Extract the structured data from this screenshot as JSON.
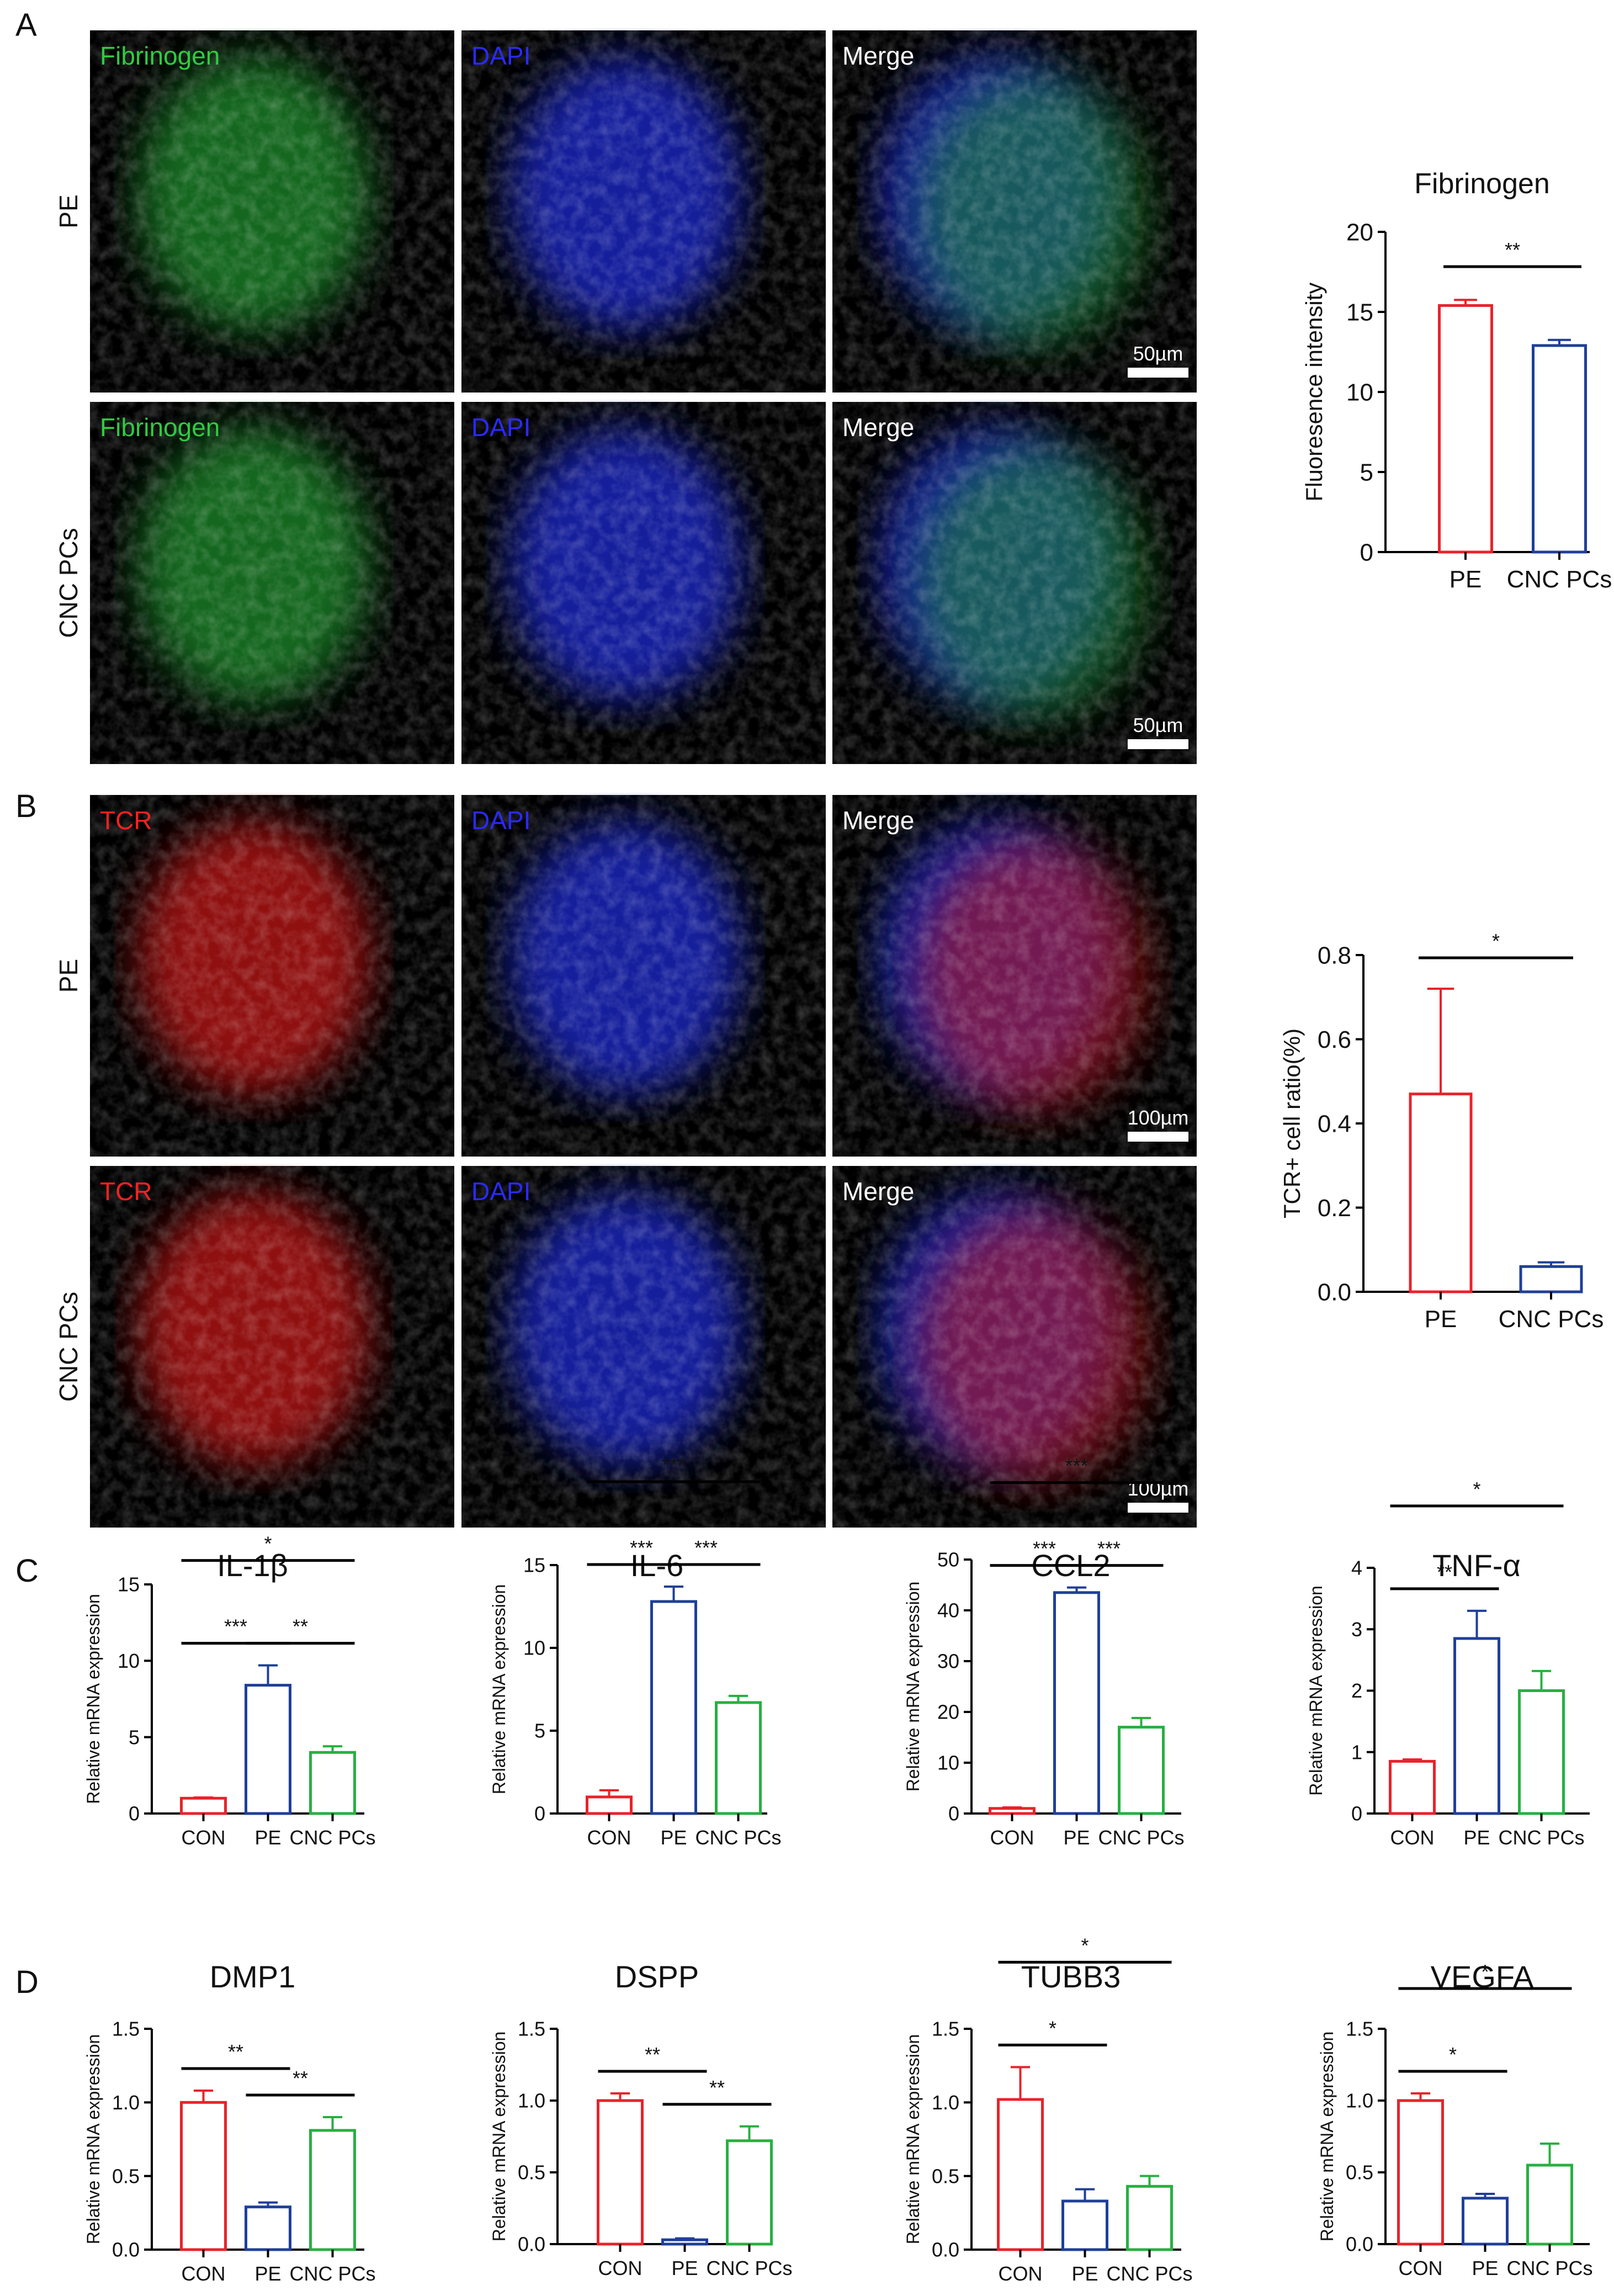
{
  "panels": {
    "A": {
      "label": "A",
      "rows": [
        {
          "name": "PE",
          "scale_bar": "50µm",
          "tiles": [
            {
              "label": "Fibrinogen",
              "color": "#2ecc40"
            },
            {
              "label": "DAPI",
              "color": "#2a2aff"
            },
            {
              "label": "Merge",
              "color": "#ffffff"
            }
          ]
        },
        {
          "name": "CNC PCs",
          "scale_bar": "50µm",
          "tiles": [
            {
              "label": "Fibrinogen",
              "color": "#2ecc40"
            },
            {
              "label": "DAPI",
              "color": "#2a2aff"
            },
            {
              "label": "Merge",
              "color": "#ffffff"
            }
          ]
        }
      ]
    },
    "B": {
      "label": "B",
      "rows": [
        {
          "name": "PE",
          "scale_bar": "100µm",
          "tiles": [
            {
              "label": "TCR",
              "color": "#ff2020"
            },
            {
              "label": "DAPI",
              "color": "#2a2aff"
            },
            {
              "label": "Merge",
              "color": "#ffffff"
            }
          ]
        },
        {
          "name": "CNC PCs",
          "scale_bar": "100µm",
          "tiles": [
            {
              "label": "TCR",
              "color": "#ff2020"
            },
            {
              "label": "DAPI",
              "color": "#2a2aff"
            },
            {
              "label": "Merge",
              "color": "#ffffff"
            }
          ]
        }
      ]
    },
    "C": {
      "label": "C"
    },
    "D": {
      "label": "D"
    }
  },
  "chart_data": [
    {
      "id": "fib",
      "type": "bar",
      "title": "Fibrinogen",
      "ylabel": "Fluoresence intensity",
      "categories": [
        "PE",
        "CNC PCs"
      ],
      "values": [
        15.4,
        12.9
      ],
      "errors": [
        0.35,
        0.35
      ],
      "colors": [
        "#e8232a",
        "#1f3f99"
      ],
      "ylim": [
        0,
        20
      ],
      "yticks": [
        "0",
        "5",
        "10",
        "15",
        "20"
      ],
      "significance": [
        {
          "from": 0,
          "to": 1,
          "label": "**"
        }
      ]
    },
    {
      "id": "tcr",
      "type": "bar",
      "title": "",
      "ylabel": "TCR+ cell ratio(%)",
      "categories": [
        "PE",
        "CNC PCs"
      ],
      "values": [
        0.47,
        0.06
      ],
      "errors": [
        0.25,
        0.01
      ],
      "colors": [
        "#e8232a",
        "#1f3f99"
      ],
      "ylim": [
        0,
        0.8
      ],
      "yticks": [
        "0.0",
        "0.2",
        "0.4",
        "0.6",
        "0.8"
      ],
      "significance": [
        {
          "from": 0,
          "to": 1,
          "label": "*"
        }
      ]
    },
    {
      "id": "il1b",
      "type": "bar",
      "title": "IL-1β",
      "ylabel": "Relative mRNA expression",
      "categories": [
        "CON",
        "PE",
        "CNC PCs"
      ],
      "values": [
        1.0,
        8.4,
        4.0
      ],
      "errors": [
        0.05,
        1.3,
        0.4
      ],
      "colors": [
        "#e8232a",
        "#1f3f99",
        "#27b040"
      ],
      "ylim": [
        0,
        15
      ],
      "yticks": [
        "0",
        "5",
        "10",
        "15"
      ],
      "significance": [
        {
          "from": 0,
          "to": 1,
          "label": "***"
        },
        {
          "from": 1,
          "to": 2,
          "label": "**"
        },
        {
          "from": 0,
          "to": 2,
          "label": "*"
        }
      ]
    },
    {
      "id": "il6",
      "type": "bar",
      "title": "IL-6",
      "ylabel": "Relative mRNA expression",
      "categories": [
        "CON",
        "PE",
        "CNC PCs"
      ],
      "values": [
        1.0,
        12.8,
        6.7
      ],
      "errors": [
        0.4,
        0.9,
        0.4
      ],
      "colors": [
        "#e8232a",
        "#1f3f99",
        "#27b040"
      ],
      "ylim": [
        0,
        15
      ],
      "yticks": [
        "0",
        "5",
        "10",
        "15"
      ],
      "significance": [
        {
          "from": 0,
          "to": 1,
          "label": "***"
        },
        {
          "from": 1,
          "to": 2,
          "label": "***"
        },
        {
          "from": 0,
          "to": 2,
          "label": "***"
        }
      ]
    },
    {
      "id": "ccl2",
      "type": "bar",
      "title": "CCL2",
      "ylabel": "Relative mRNA expression",
      "categories": [
        "CON",
        "PE",
        "CNC PCs"
      ],
      "values": [
        1.0,
        43.5,
        17.0
      ],
      "errors": [
        0.2,
        1.0,
        1.8
      ],
      "colors": [
        "#e8232a",
        "#1f3f99",
        "#27b040"
      ],
      "ylim": [
        0,
        50
      ],
      "yticks": [
        "0",
        "10",
        "20",
        "30",
        "40",
        "50"
      ],
      "significance": [
        {
          "from": 0,
          "to": 1,
          "label": "***"
        },
        {
          "from": 1,
          "to": 2,
          "label": "***"
        },
        {
          "from": 0,
          "to": 2,
          "label": "***"
        }
      ]
    },
    {
      "id": "tnfa",
      "type": "bar",
      "title": "TNF-α",
      "ylabel": "Relative mRNA expression",
      "categories": [
        "CON",
        "PE",
        "CNC PCs"
      ],
      "values": [
        0.85,
        2.85,
        2.0
      ],
      "errors": [
        0.03,
        0.45,
        0.32
      ],
      "colors": [
        "#e8232a",
        "#1f3f99",
        "#27b040"
      ],
      "ylim": [
        0,
        4
      ],
      "yticks": [
        "0",
        "1",
        "2",
        "3",
        "4"
      ],
      "significance": [
        {
          "from": 0,
          "to": 1,
          "label": "**"
        },
        {
          "from": 0,
          "to": 2,
          "label": "*"
        }
      ]
    },
    {
      "id": "dmp1",
      "type": "bar",
      "title": "DMP1",
      "ylabel": "Relative mRNA expression",
      "categories": [
        "CON",
        "PE",
        "CNC PCs"
      ],
      "values": [
        1.0,
        0.29,
        0.81
      ],
      "errors": [
        0.08,
        0.03,
        0.09
      ],
      "colors": [
        "#e8232a",
        "#1f3f99",
        "#27b040"
      ],
      "ylim": [
        0,
        1.5
      ],
      "yticks": [
        "0.0",
        "0.5",
        "1.0",
        "1.5"
      ],
      "significance": [
        {
          "from": 0,
          "to": 1,
          "label": "**"
        },
        {
          "from": 1,
          "to": 2,
          "label": "**"
        }
      ]
    },
    {
      "id": "dspp",
      "type": "bar",
      "title": "DSPP",
      "ylabel": "Relative mRNA expression",
      "categories": [
        "CON",
        "PE",
        "CNC PCs"
      ],
      "values": [
        1.0,
        0.03,
        0.72
      ],
      "errors": [
        0.05,
        0.01,
        0.1
      ],
      "colors": [
        "#e8232a",
        "#1f3f99",
        "#27b040"
      ],
      "ylim": [
        0,
        1.5
      ],
      "yticks": [
        "0.0",
        "0.5",
        "1.0",
        "1.5"
      ],
      "significance": [
        {
          "from": 0,
          "to": 1,
          "label": "**"
        },
        {
          "from": 1,
          "to": 2,
          "label": "**"
        }
      ]
    },
    {
      "id": "tubb3",
      "type": "bar",
      "title": "TUBB3",
      "ylabel": "Relative mRNA expression",
      "categories": [
        "CON",
        "PE",
        "CNC PCs"
      ],
      "values": [
        1.02,
        0.33,
        0.43
      ],
      "errors": [
        0.22,
        0.08,
        0.07
      ],
      "colors": [
        "#e8232a",
        "#1f3f99",
        "#27b040"
      ],
      "ylim": [
        0,
        1.5
      ],
      "yticks": [
        "0.0",
        "0.5",
        "1.0",
        "1.5"
      ],
      "significance": [
        {
          "from": 0,
          "to": 1,
          "label": "*"
        },
        {
          "from": 0,
          "to": 2,
          "label": "*"
        }
      ]
    },
    {
      "id": "vegfa",
      "type": "bar",
      "title": "VEGFA",
      "ylabel": "Relative mRNA expression",
      "categories": [
        "CON",
        "PE",
        "CNC PCs"
      ],
      "values": [
        1.0,
        0.32,
        0.55
      ],
      "errors": [
        0.05,
        0.03,
        0.15
      ],
      "colors": [
        "#e8232a",
        "#1f3f99",
        "#27b040"
      ],
      "ylim": [
        0,
        1.5
      ],
      "yticks": [
        "0.0",
        "0.5",
        "1.0",
        "1.5"
      ],
      "significance": [
        {
          "from": 0,
          "to": 1,
          "label": "*"
        },
        {
          "from": 0,
          "to": 2,
          "label": "*"
        }
      ]
    }
  ]
}
